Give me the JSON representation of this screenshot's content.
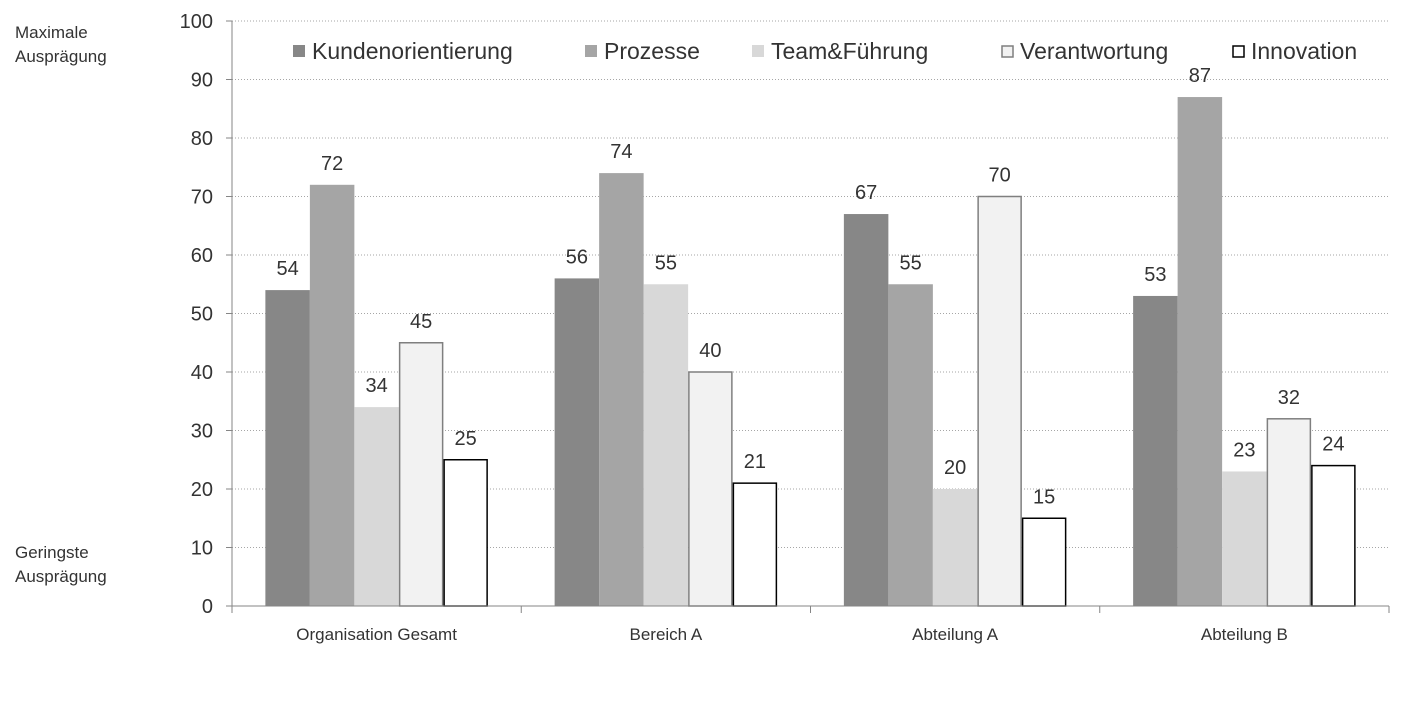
{
  "annotations": {
    "top": [
      "Maximale",
      "Ausprägung"
    ],
    "bottom": [
      "Geringste",
      "Ausprägung"
    ]
  },
  "chart_data": {
    "type": "bar",
    "title": "",
    "xlabel": "",
    "ylabel": "",
    "ylim": [
      0,
      100
    ],
    "yticks": [
      0,
      10,
      20,
      30,
      40,
      50,
      60,
      70,
      80,
      90,
      100
    ],
    "grid": true,
    "legend_position": "top",
    "categories": [
      "Organisation Gesamt",
      "Bereich A",
      "Abteilung A",
      "Abteilung B"
    ],
    "series": [
      {
        "name": "Kundenorientierung",
        "values": [
          54,
          56,
          67,
          53
        ],
        "color": "#878787",
        "stroke": "none"
      },
      {
        "name": "Prozesse",
        "values": [
          72,
          74,
          55,
          87
        ],
        "color": "#a5a5a5",
        "stroke": "none"
      },
      {
        "name": "Team&Führung",
        "values": [
          34,
          55,
          20,
          23
        ],
        "color": "#d8d8d8",
        "stroke": "none"
      },
      {
        "name": "Verantwortung",
        "values": [
          45,
          40,
          70,
          32
        ],
        "color": "#f2f2f2",
        "stroke": "#7f7f7f"
      },
      {
        "name": "Innovation",
        "values": [
          25,
          21,
          15,
          24
        ],
        "color": "#ffffff",
        "stroke": "#000000"
      }
    ],
    "data_labels": true
  }
}
